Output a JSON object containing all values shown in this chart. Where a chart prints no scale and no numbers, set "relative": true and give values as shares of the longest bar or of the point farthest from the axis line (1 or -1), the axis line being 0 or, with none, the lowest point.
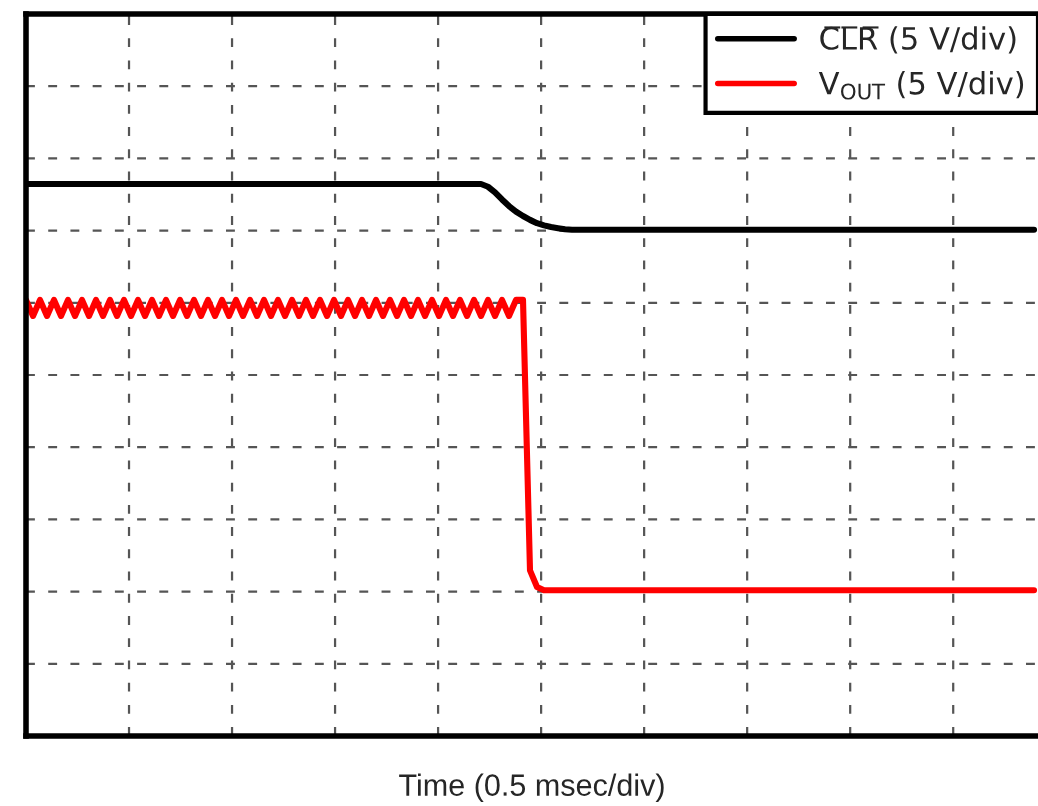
{
  "chart_data": {
    "type": "line",
    "relative": true,
    "xlabel": "Time (0.5 msec/div)",
    "grid": true,
    "tick_labels": false,
    "legend": "top right",
    "line_style": "solid",
    "marker": "none",
    "categories": [
      null,
      null,
      null,
      null,
      null,
      null,
      null,
      null,
      null,
      null,
      null,
      null,
      null,
      null,
      null,
      null,
      null,
      null,
      null,
      null,
      null,
      null,
      null,
      null,
      null,
      null,
      null,
      null,
      null,
      null,
      null,
      null,
      null,
      null,
      null,
      null,
      null,
      null,
      null,
      null,
      null,
      null,
      null,
      null,
      null,
      null,
      null,
      null,
      null,
      null,
      null,
      null,
      null,
      null,
      null,
      null,
      null,
      null,
      null,
      null,
      null,
      null,
      null,
      null,
      null,
      null,
      null,
      null,
      null,
      null,
      null,
      null,
      null,
      null,
      null,
      null,
      null,
      null,
      null,
      null,
      null,
      null,
      null,
      null,
      null,
      null,
      null,
      null,
      null,
      null,
      null,
      null,
      null,
      null,
      null,
      null,
      null,
      null,
      null,
      null,
      null,
      null,
      null,
      null,
      null,
      null,
      null,
      null,
      null,
      null,
      null,
      null,
      null,
      null,
      null,
      null,
      null,
      null,
      null,
      null,
      null,
      null,
      null,
      null,
      null,
      null,
      null,
      null,
      null,
      null,
      null,
      null,
      null,
      null,
      null,
      null,
      null,
      null,
      null,
      null,
      null,
      null,
      null,
      null,
      null
    ],
    "series": [
      {
        "name": "C̅L̅R̅ (5 V/div)",
        "color": "#000000",
        "values": [
          1,
          1,
          1,
          1,
          1,
          1,
          1,
          1,
          1,
          1,
          1,
          1,
          1,
          1,
          1,
          1,
          1,
          1,
          1,
          1,
          1,
          1,
          1,
          1,
          1,
          1,
          1,
          1,
          1,
          1,
          1,
          1,
          1,
          1,
          1,
          1,
          1,
          1,
          1,
          1,
          1,
          1,
          1,
          1,
          1,
          1,
          1,
          1,
          1,
          1,
          1,
          1,
          1,
          1,
          1,
          1,
          1,
          1,
          1,
          1,
          1,
          1,
          1,
          1,
          1,
          1,
          0.995,
          0.985,
          0.972,
          0.96,
          0.95,
          0.942,
          0.935,
          0.929,
          0.925,
          0.922,
          0.92,
          0.918,
          0.917,
          0.917,
          0.917,
          0.917,
          0.917,
          0.917,
          0.917,
          0.917,
          0.917,
          0.917,
          0.917,
          0.917,
          0.917,
          0.917,
          0.917,
          0.917,
          0.917,
          0.917,
          0.917,
          0.917,
          0.917,
          0.917,
          0.917,
          0.917,
          0.917,
          0.917,
          0.917,
          0.917,
          0.917,
          0.917,
          0.917,
          0.917,
          0.917,
          0.917,
          0.917,
          0.917,
          0.917,
          0.917,
          0.917,
          0.917,
          0.917,
          0.917,
          0.917,
          0.917,
          0.917,
          0.917,
          0.917,
          0.917,
          0.917,
          0.917,
          0.917,
          0.917,
          0.917,
          0.917,
          0.917,
          0.917,
          0.917,
          0.917,
          0.917,
          0.917,
          0.917,
          0.917,
          0.917,
          0.917,
          0.917,
          0.917,
          0.917
        ]
      },
      {
        "name": "V$_{OUT}$ (5 V/div)",
        "color": "#ff0000",
        "values": [
          0.79,
          0.761,
          0.79,
          0.761,
          0.79,
          0.761,
          0.79,
          0.761,
          0.79,
          0.761,
          0.79,
          0.761,
          0.79,
          0.761,
          0.79,
          0.761,
          0.79,
          0.761,
          0.79,
          0.761,
          0.79,
          0.761,
          0.79,
          0.761,
          0.79,
          0.761,
          0.79,
          0.761,
          0.79,
          0.761,
          0.79,
          0.761,
          0.79,
          0.761,
          0.79,
          0.761,
          0.79,
          0.761,
          0.79,
          0.761,
          0.79,
          0.761,
          0.79,
          0.761,
          0.79,
          0.761,
          0.79,
          0.761,
          0.79,
          0.761,
          0.79,
          0.761,
          0.79,
          0.761,
          0.79,
          0.761,
          0.79,
          0.761,
          0.79,
          0.761,
          0.79,
          0.761,
          0.79,
          0.761,
          0.79,
          0.761,
          0.79,
          0.761,
          0.79,
          0.761,
          0.79,
          0.79,
          0.3,
          0.27,
          0.264,
          0.264,
          0.264,
          0.264,
          0.264,
          0.264,
          0.264,
          0.264,
          0.264,
          0.264,
          0.264,
          0.264,
          0.264,
          0.264,
          0.264,
          0.264,
          0.264,
          0.264,
          0.264,
          0.264,
          0.264,
          0.264,
          0.264,
          0.264,
          0.264,
          0.264,
          0.264,
          0.264,
          0.264,
          0.264,
          0.264,
          0.264,
          0.264,
          0.264,
          0.264,
          0.264,
          0.264,
          0.264,
          0.264,
          0.264,
          0.264,
          0.264,
          0.264,
          0.264,
          0.264,
          0.264,
          0.264,
          0.264,
          0.264,
          0.264,
          0.264,
          0.264,
          0.264,
          0.264,
          0.264,
          0.264,
          0.264,
          0.264,
          0.264,
          0.264,
          0.264,
          0.264,
          0.264,
          0.264,
          0.264,
          0.264,
          0.264,
          0.264,
          0.264,
          0.264,
          0.264
        ]
      }
    ]
  }
}
